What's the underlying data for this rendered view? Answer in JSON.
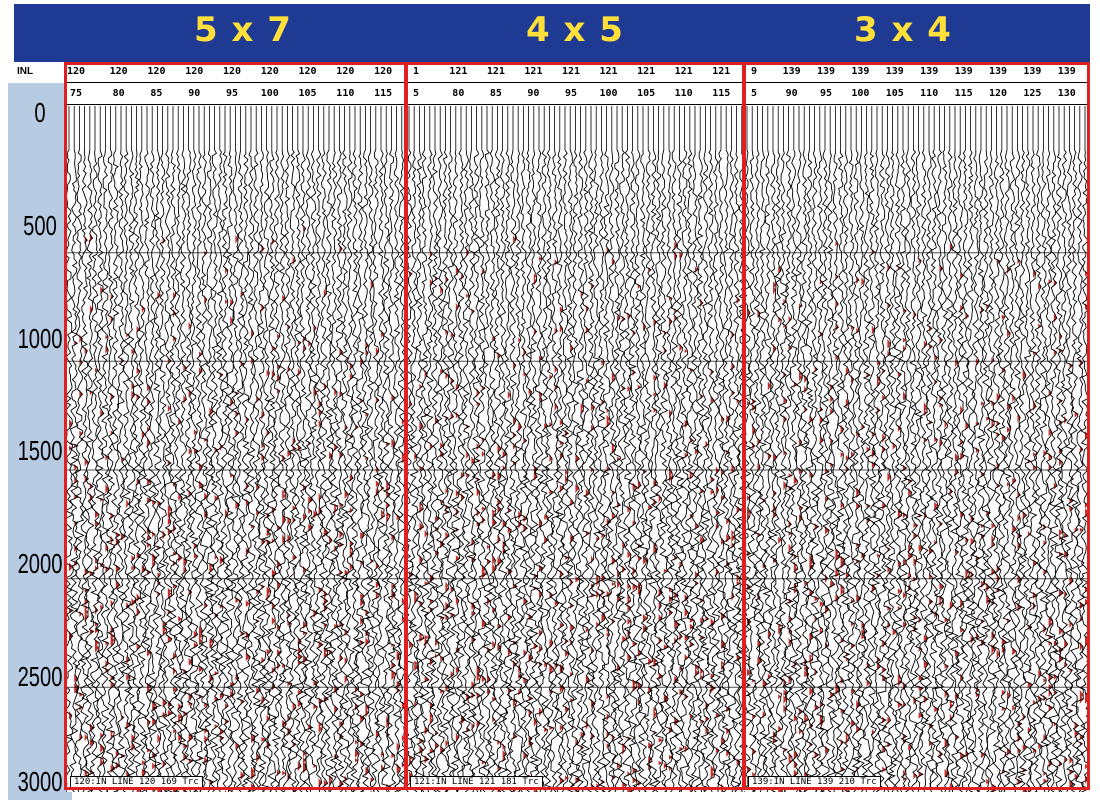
{
  "header": {
    "panels": [
      "5 x 7",
      "4 x 5",
      "3 x 4"
    ],
    "bar_color": "#1f3a93",
    "text_color": "#ffe03a"
  },
  "axis": {
    "label": "INL",
    "ticks": [
      "0",
      "500",
      "1000",
      "1500",
      "2000",
      "2500",
      "3000"
    ]
  },
  "panels": [
    {
      "inline_values": [
        "120",
        "120",
        "120",
        "120",
        "120",
        "120",
        "120",
        "120",
        "120"
      ],
      "trace_values": [
        "75",
        "80",
        "85",
        "90",
        "95",
        "100",
        "105",
        "110",
        "115"
      ],
      "footer": "120:IN LINE 120 169 Trc"
    },
    {
      "inline_values": [
        "1",
        "121",
        "121",
        "121",
        "121",
        "121",
        "121",
        "121",
        "121"
      ],
      "trace_values": [
        "5",
        "80",
        "85",
        "90",
        "95",
        "100",
        "105",
        "110",
        "115"
      ],
      "footer": "121:IN LINE 121 181 Trc"
    },
    {
      "inline_values": [
        "9",
        "139",
        "139",
        "139",
        "139",
        "139",
        "139",
        "139",
        "139",
        "139"
      ],
      "trace_values": [
        "5",
        "90",
        "95",
        "100",
        "105",
        "110",
        "115",
        "120",
        "125",
        "130"
      ],
      "footer": "139:IN LINE 139 210 Trc"
    }
  ],
  "colors": {
    "border": "#e02020",
    "wiggle": "#000000",
    "fill": "#c0302a",
    "axis_strip": "#b7cbe3"
  }
}
